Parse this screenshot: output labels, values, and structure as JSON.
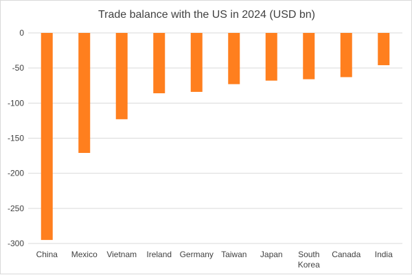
{
  "chart_data": {
    "type": "bar",
    "title": "Trade balance with the US in 2024 (USD bn)",
    "categories": [
      "China",
      "Mexico",
      "Vietnam",
      "Ireland",
      "Germany",
      "Taiwan",
      "Japan",
      "South Korea",
      "Canada",
      "India"
    ],
    "category_lines": [
      [
        "China"
      ],
      [
        "Mexico"
      ],
      [
        "Vietnam"
      ],
      [
        "Ireland"
      ],
      [
        "Germany"
      ],
      [
        "Taiwan"
      ],
      [
        "Japan"
      ],
      [
        "South",
        "Korea"
      ],
      [
        "Canada"
      ],
      [
        "India"
      ]
    ],
    "values": [
      -295,
      -171,
      -123,
      -86,
      -84,
      -73,
      -68,
      -66,
      -63,
      -46
    ],
    "ylim": [
      -300,
      0
    ],
    "yticks": [
      0,
      -50,
      -100,
      -150,
      -200,
      -250,
      -300
    ],
    "ytick_labels": [
      "0",
      "-50",
      "-100",
      "-150",
      "-200",
      "-250",
      "-300"
    ],
    "grid": true,
    "bar_color": "#ff7f1e",
    "xlabel": "",
    "ylabel": ""
  }
}
